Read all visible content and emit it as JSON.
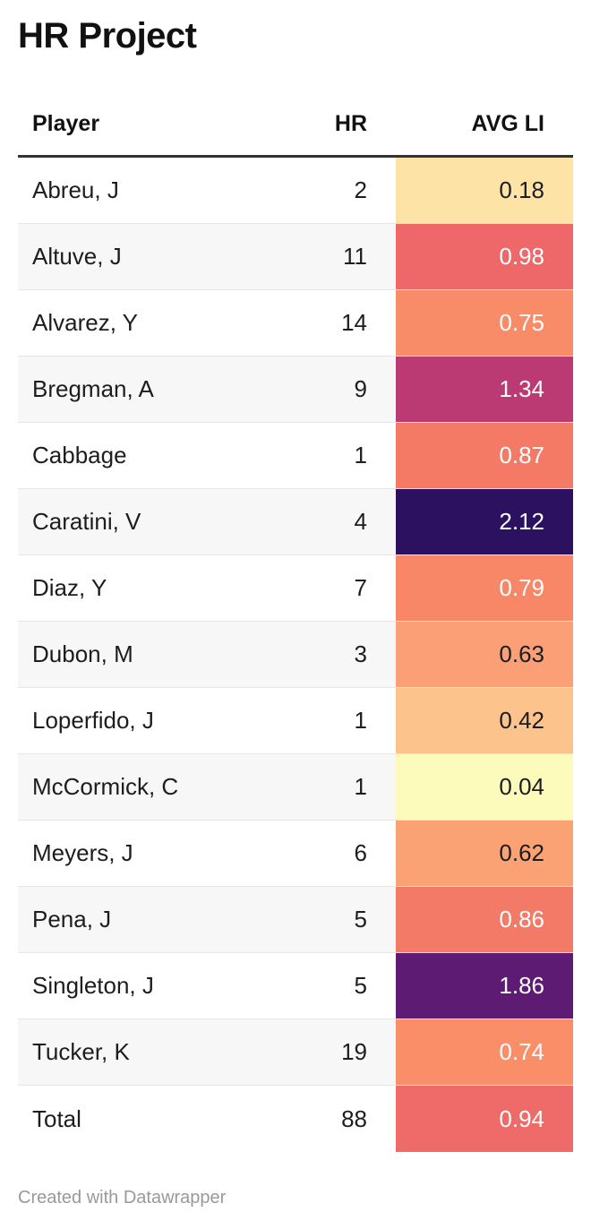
{
  "title": "HR Project",
  "columns": {
    "player": "Player",
    "hr": "HR",
    "avg_li": "AVG LI"
  },
  "rows": [
    {
      "player": "Abreu, J",
      "hr": "2",
      "avg_li": "0.18",
      "li_bg": "#fde4a6",
      "li_fg": "#1d1d1d"
    },
    {
      "player": "Altuve, J",
      "hr": "11",
      "avg_li": "0.98",
      "li_bg": "#ee6869",
      "li_fg": "#ffffff"
    },
    {
      "player": "Alvarez, Y",
      "hr": "14",
      "avg_li": "0.75",
      "li_bg": "#f98c68",
      "li_fg": "#ffffff"
    },
    {
      "player": "Bregman, A",
      "hr": "9",
      "avg_li": "1.34",
      "li_bg": "#bb3a73",
      "li_fg": "#ffffff"
    },
    {
      "player": "Cabbage",
      "hr": "1",
      "avg_li": "0.87",
      "li_bg": "#f47a66",
      "li_fg": "#ffffff"
    },
    {
      "player": "Caratini, V",
      "hr": "4",
      "avg_li": "2.12",
      "li_bg": "#2b1160",
      "li_fg": "#ffffff"
    },
    {
      "player": "Diaz, Y",
      "hr": "7",
      "avg_li": "0.79",
      "li_bg": "#f88767",
      "li_fg": "#ffffff"
    },
    {
      "player": "Dubon, M",
      "hr": "3",
      "avg_li": "0.63",
      "li_bg": "#fb9f76",
      "li_fg": "#1d1d1d"
    },
    {
      "player": "Loperfido, J",
      "hr": "1",
      "avg_li": "0.42",
      "li_bg": "#fcc38d",
      "li_fg": "#1d1d1d"
    },
    {
      "player": "McCormick, C",
      "hr": "1",
      "avg_li": "0.04",
      "li_bg": "#fcfbbb",
      "li_fg": "#1d1d1d"
    },
    {
      "player": "Meyers, J",
      "hr": "6",
      "avg_li": "0.62",
      "li_bg": "#fba274",
      "li_fg": "#1d1d1d"
    },
    {
      "player": "Pena, J",
      "hr": "5",
      "avg_li": "0.86",
      "li_bg": "#f37a66",
      "li_fg": "#ffffff"
    },
    {
      "player": "Singleton, J",
      "hr": "5",
      "avg_li": "1.86",
      "li_bg": "#5d1b73",
      "li_fg": "#ffffff"
    },
    {
      "player": "Tucker, K",
      "hr": "19",
      "avg_li": "0.74",
      "li_bg": "#f98e69",
      "li_fg": "#ffffff"
    },
    {
      "player": "Total",
      "hr": "88",
      "avg_li": "0.94",
      "li_bg": "#ef6b69",
      "li_fg": "#ffffff"
    }
  ],
  "footer": "Created with Datawrapper"
}
